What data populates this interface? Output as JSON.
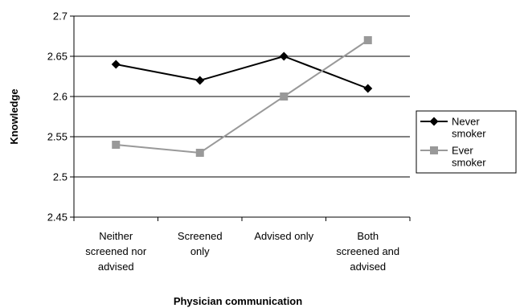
{
  "chart_data": {
    "type": "line",
    "categories": [
      [
        "Neither",
        "screened nor",
        "advised"
      ],
      [
        "Screened",
        "only"
      ],
      [
        "Advised only"
      ],
      [
        "Both",
        "screened and",
        "advised"
      ]
    ],
    "series": [
      {
        "name": [
          "Never",
          "smoker"
        ],
        "values": [
          2.64,
          2.62,
          2.65,
          2.61
        ],
        "color": "#000000",
        "marker": "diamond"
      },
      {
        "name": [
          "Ever",
          "smoker"
        ],
        "values": [
          2.54,
          2.53,
          2.6,
          2.67
        ],
        "color": "#999999",
        "marker": "square"
      }
    ],
    "xlabel": "Physician communication",
    "ylabel": "Knowledge",
    "ylim": [
      2.45,
      2.7
    ],
    "yticks": [
      "2.45",
      "2.5",
      "2.55",
      "2.6",
      "2.65",
      "2.7"
    ],
    "grid": true,
    "legend": "right"
  }
}
